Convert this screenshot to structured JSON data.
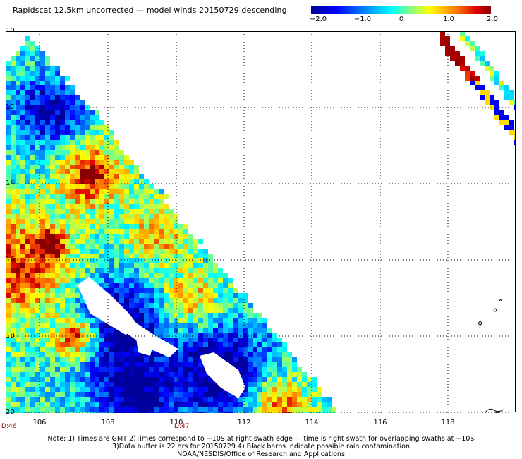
{
  "title": "Rapidscat 12.5km uncorrected — model winds 20150729 descending",
  "colorbar": {
    "labels": [
      "−2.0",
      "−1.0",
      "0",
      "1.0",
      "2.0"
    ],
    "range": [
      -2.0,
      2.0
    ],
    "colors": [
      "#0000b4",
      "#0050ff",
      "#00d2ff",
      "#78ff78",
      "#ffff00",
      "#ff8c00",
      "#dc0000",
      "#8b0000"
    ]
  },
  "map": {
    "lon_labels": [
      "106",
      "108",
      "110",
      "112",
      "114",
      "116",
      "118"
    ],
    "lat_labels": [
      "10",
      "12",
      "14",
      "16",
      "18",
      "20"
    ],
    "time_labels": [
      "D:46",
      "D:47"
    ]
  },
  "notes": [
    "Note: 1) Times are GMT 2)Times correspond to −10S at right swath edge — time is right swath for overlapping swaths at −10S",
    "3)Data buffer is 22 hrs for 20150729 4) Black barbs indicate possible rain contamination",
    "NOAA/NESDIS/Office of Research and Applications"
  ]
}
